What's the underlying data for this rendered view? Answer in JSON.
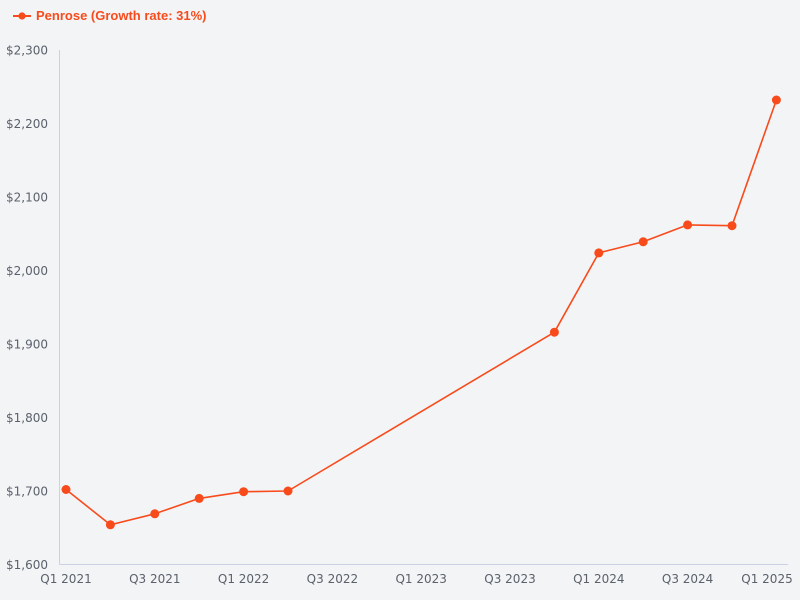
{
  "legend": {
    "label": "Penrose (Growth rate: 31%)"
  },
  "chart_data": {
    "type": "line",
    "title": "",
    "xlabel": "",
    "ylabel": "",
    "grid": false,
    "legend_position": "top-left",
    "ylim": [
      1600,
      2300
    ],
    "y_ticks": [
      1600,
      1700,
      1800,
      1900,
      2000,
      2100,
      2200,
      2300
    ],
    "y_tick_prefix": "$",
    "x_tick_labels": [
      {
        "label": "Q1 2021",
        "quarter_index": 0
      },
      {
        "label": "Q3 2021",
        "quarter_index": 2
      },
      {
        "label": "Q1 2022",
        "quarter_index": 4
      },
      {
        "label": "Q3 2022",
        "quarter_index": 6
      },
      {
        "label": "Q1 2023",
        "quarter_index": 8
      },
      {
        "label": "Q3 2023",
        "quarter_index": 10
      },
      {
        "label": "Q1 2024",
        "quarter_index": 12
      },
      {
        "label": "Q3 2024",
        "quarter_index": 14
      },
      {
        "label": "Q1 2025",
        "quarter_index": 16
      }
    ],
    "series": [
      {
        "name": "Penrose",
        "growth_rate": "31%",
        "points": [
          {
            "x": "Q1 2021",
            "quarter_index": 0,
            "value": 1702
          },
          {
            "x": "Q2 2021",
            "quarter_index": 1,
            "value": 1654
          },
          {
            "x": "Q3 2021",
            "quarter_index": 2,
            "value": 1669
          },
          {
            "x": "Q4 2021",
            "quarter_index": 3,
            "value": 1690
          },
          {
            "x": "Q1 2022",
            "quarter_index": 4,
            "value": 1699
          },
          {
            "x": "Q2 2022",
            "quarter_index": 5,
            "value": 1700
          },
          {
            "x": "Q4 2023",
            "quarter_index": 11,
            "value": 1916
          },
          {
            "x": "Q1 2024",
            "quarter_index": 12,
            "value": 2024
          },
          {
            "x": "Q2 2024",
            "quarter_index": 13,
            "value": 2039
          },
          {
            "x": "Q3 2024",
            "quarter_index": 14,
            "value": 2062
          },
          {
            "x": "Q4 2024",
            "quarter_index": 15,
            "value": 2061
          },
          {
            "x": "Q1 2025",
            "quarter_index": 16,
            "value": 2232
          }
        ]
      }
    ],
    "colors": {
      "series": "#f84b1c",
      "axis": "#c9d2e0",
      "tick_text": "#5b616b",
      "background": "#f3f4f6"
    }
  }
}
